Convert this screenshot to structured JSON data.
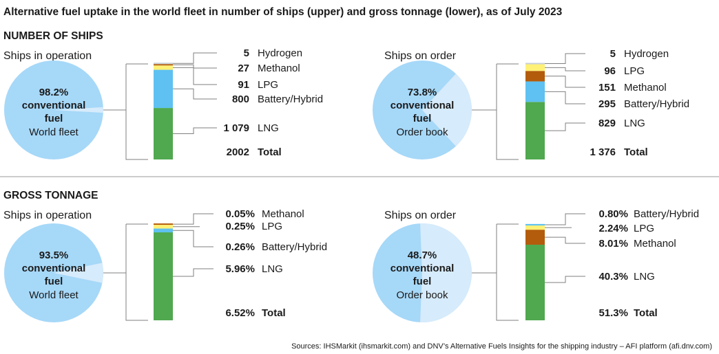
{
  "title": "Alternative fuel uptake in the world fleet in number of ships (upper) and gross tonnage (lower), as of July 2023",
  "source": "Sources: IHSMarkit (ihsmarkit.com) and DNV’s Alternative Fuels Insights for the shipping industry – AFI platform (afi.dnv.com)",
  "colors": {
    "pie_light": "#d6ebfb",
    "pie_dark": "#a6d8f8",
    "LNG": "#50a84f",
    "Battery/Hybrid": "#5ec1f1",
    "Methanol": "#b35c0c",
    "LPG": "#fff176",
    "Hydrogen": "#c7d0d8",
    "bracket": "#7f7f7f"
  },
  "chart_data": [
    {
      "type": "pie+stacked-bar",
      "section": "NUMBER OF SHIPS",
      "panel_title": "Ships in operation",
      "pie": {
        "conventional_pct": 98.2,
        "line1": "98.2%",
        "line2": "conventional",
        "line3": "fuel",
        "line4": "World fleet"
      },
      "series": [
        {
          "name": "LNG",
          "value": 1079,
          "label": "1 079"
        },
        {
          "name": "Battery/Hybrid",
          "value": 800,
          "label": "800"
        },
        {
          "name": "LPG",
          "value": 91,
          "label": "91"
        },
        {
          "name": "Methanol",
          "value": 27,
          "label": "27"
        },
        {
          "name": "Hydrogen",
          "value": 5,
          "label": "5"
        }
      ],
      "total": {
        "value": 2002,
        "label": "2002",
        "name": "Total"
      },
      "bar_scale": 2002
    },
    {
      "type": "pie+stacked-bar",
      "section": "NUMBER OF SHIPS",
      "panel_title": "Ships on order",
      "pie": {
        "conventional_pct": 73.8,
        "line1": "73.8%",
        "line2": "conventional",
        "line3": "fuel",
        "line4": "Order book"
      },
      "series": [
        {
          "name": "LNG",
          "value": 829,
          "label": "829"
        },
        {
          "name": "Battery/Hybrid",
          "value": 295,
          "label": "295"
        },
        {
          "name": "Methanol",
          "value": 151,
          "label": "151"
        },
        {
          "name": "LPG",
          "value": 96,
          "label": "96"
        },
        {
          "name": "Hydrogen",
          "value": 5,
          "label": "5"
        }
      ],
      "total": {
        "value": 1376,
        "label": "1 376",
        "name": "Total"
      },
      "bar_scale": 1376
    },
    {
      "type": "pie+stacked-bar",
      "section": "GROSS TONNAGE",
      "panel_title": "Ships in operation",
      "pie": {
        "conventional_pct": 93.5,
        "line1": "93.5%",
        "line2": "conventional",
        "line3": "fuel",
        "line4": "World fleet"
      },
      "series": [
        {
          "name": "LNG",
          "value": 5.96,
          "label": "5.96%"
        },
        {
          "name": "Battery/Hybrid",
          "value": 0.26,
          "label": "0.26%"
        },
        {
          "name": "LPG",
          "value": 0.25,
          "label": "0.25%"
        },
        {
          "name": "Methanol",
          "value": 0.05,
          "label": "0.05%"
        }
      ],
      "total": {
        "value": 6.52,
        "label": "6.52%",
        "name": "Total"
      },
      "bar_scale": 6.52
    },
    {
      "type": "pie+stacked-bar",
      "section": "GROSS TONNAGE",
      "panel_title": "Ships on order",
      "pie": {
        "conventional_pct": 48.7,
        "line1": "48.7%",
        "line2": "conventional",
        "line3": "fuel",
        "line4": "Order book"
      },
      "series": [
        {
          "name": "LNG",
          "value": 40.3,
          "label": "40.3%"
        },
        {
          "name": "Methanol",
          "value": 8.01,
          "label": "8.01%"
        },
        {
          "name": "LPG",
          "value": 2.24,
          "label": "2.24%"
        },
        {
          "name": "Battery/Hybrid",
          "value": 0.8,
          "label": "0.80%"
        }
      ],
      "total": {
        "value": 51.3,
        "label": "51.3%",
        "name": "Total"
      },
      "bar_scale": 51.3
    }
  ]
}
